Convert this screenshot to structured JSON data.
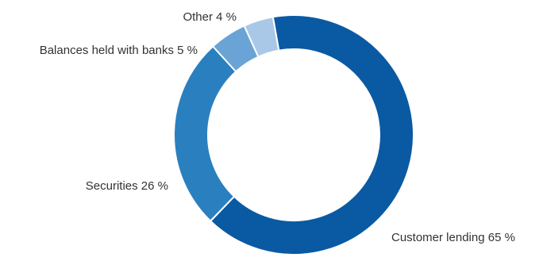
{
  "chart_data": {
    "type": "pie",
    "donut": true,
    "legend": "none",
    "slices": [
      {
        "label": "Customer lending",
        "value": 65,
        "display": "Customer lending 65 %",
        "color": "#0a5aa3"
      },
      {
        "label": "Securities",
        "value": 26,
        "display": "Securities 26 %",
        "color": "#2a7fbf"
      },
      {
        "label": "Balances held with banks",
        "value": 5,
        "display": "Balances held with banks 5 %",
        "color": "#6aa3d5"
      },
      {
        "label": "Other",
        "value": 4,
        "display": "Other 4 %",
        "color": "#a9c8e8"
      }
    ]
  }
}
